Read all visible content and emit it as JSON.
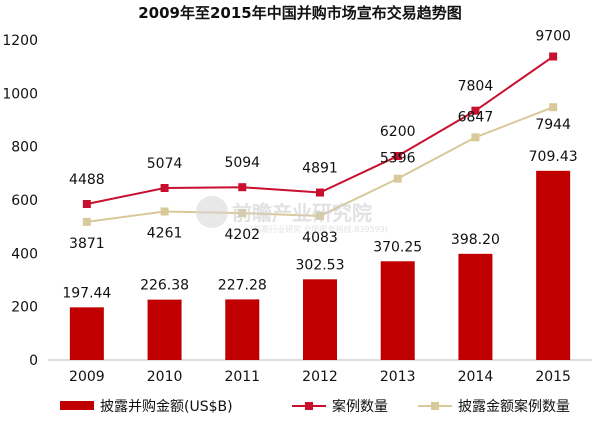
{
  "chart_data": {
    "type": "bar",
    "title": "2009年至2015年中国并购市场宣布交易趋势图",
    "categories": [
      "2009",
      "2010",
      "2011",
      "2012",
      "2013",
      "2014",
      "2015"
    ],
    "ylim": [
      0,
      1200
    ],
    "yticks": [
      0,
      200,
      400,
      600,
      800,
      1000,
      1200
    ],
    "series": [
      {
        "name": "披露并购金额(US$B)",
        "kind": "bar",
        "color": "#c00000",
        "values": [
          197.44,
          226.38,
          227.28,
          302.53,
          370.25,
          398.2,
          709.43
        ],
        "labels": [
          "197.44",
          "226.38",
          "227.28",
          "302.53",
          "370.25",
          "398.20",
          "709.43"
        ]
      },
      {
        "name": "案例数量",
        "kind": "line",
        "color": "#c8102e",
        "values": [
          4488,
          5074,
          5094,
          4891,
          6200,
          7804,
          9700
        ],
        "labels": [
          "4488",
          "5074",
          "5094",
          "4891",
          "6200",
          "7804",
          "9700"
        ]
      },
      {
        "name": "披露金额案例数量",
        "kind": "line",
        "color": "#d9c99a",
        "values": [
          3871,
          4261,
          4202,
          4083,
          5396,
          6847,
          7944
        ],
        "labels": [
          "3871",
          "4261",
          "4202",
          "4083",
          "5396",
          "6847",
          "7944"
        ]
      }
    ],
    "line_plot_values": {
      "案例数量": [
        585,
        645,
        648,
        628,
        765,
        935,
        1138
      ],
      "披露金额案例数量": [
        518,
        557,
        551,
        540,
        680,
        835,
        948
      ]
    },
    "legend_position": "bottom"
  },
  "watermark": {
    "text": "前瞻产业研究院",
    "subtext": "(前瞻行业研究 全国服务热线:839599)"
  }
}
